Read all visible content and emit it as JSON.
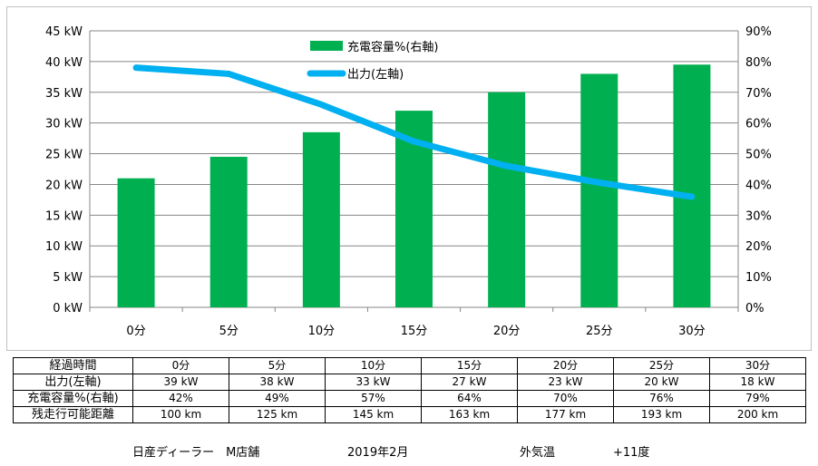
{
  "chart_data": {
    "type": "bar+line",
    "categories": [
      "0分",
      "5分",
      "10分",
      "15分",
      "20分",
      "25分",
      "30分"
    ],
    "series": [
      {
        "name": "充電容量%(右軸)",
        "type": "bar",
        "axis": "right",
        "values": [
          42,
          49,
          57,
          64,
          70,
          76,
          79
        ],
        "color": "#00b050"
      },
      {
        "name": "出力(左軸)",
        "type": "line",
        "axis": "left",
        "values": [
          39,
          38,
          33,
          27,
          23,
          20.3,
          18
        ],
        "color": "#00b0f0"
      }
    ],
    "left_axis": {
      "min": 0,
      "max": 45,
      "step": 5,
      "tick_labels": [
        "0 kW",
        "5 kW",
        "10 kW",
        "15 kW",
        "20 kW",
        "25 kW",
        "30 kW",
        "35 kW",
        "40 kW",
        "45 kW"
      ]
    },
    "right_axis": {
      "min": 0,
      "max": 90,
      "step": 10,
      "tick_labels": [
        "0%",
        "10%",
        "20%",
        "30%",
        "40%",
        "50%",
        "60%",
        "70%",
        "80%",
        "90%"
      ]
    },
    "grid": "horizontal",
    "legend_position": "top-center"
  },
  "table": {
    "header_label": "経過時間",
    "columns": [
      "0分",
      "5分",
      "10分",
      "15分",
      "20分",
      "25分",
      "30分"
    ],
    "rows": [
      {
        "label": "出力(左軸)",
        "values": [
          "39 kW",
          "38 kW",
          "33 kW",
          "27 kW",
          "23 kW",
          "20 kW",
          "18 kW"
        ]
      },
      {
        "label": "充電容量%(右軸)",
        "values": [
          "42%",
          "49%",
          "57%",
          "64%",
          "70%",
          "76%",
          "79%"
        ]
      },
      {
        "label": "残走行可能距離",
        "values": [
          "100 km",
          "125 km",
          "145 km",
          "163 km",
          "177 km",
          "193 km",
          "200 km"
        ]
      }
    ]
  },
  "footer": {
    "dealer": "日産ディーラー　M店舗",
    "date": "2019年2月",
    "temp_label": "外気温",
    "temp_value": "+11度"
  }
}
